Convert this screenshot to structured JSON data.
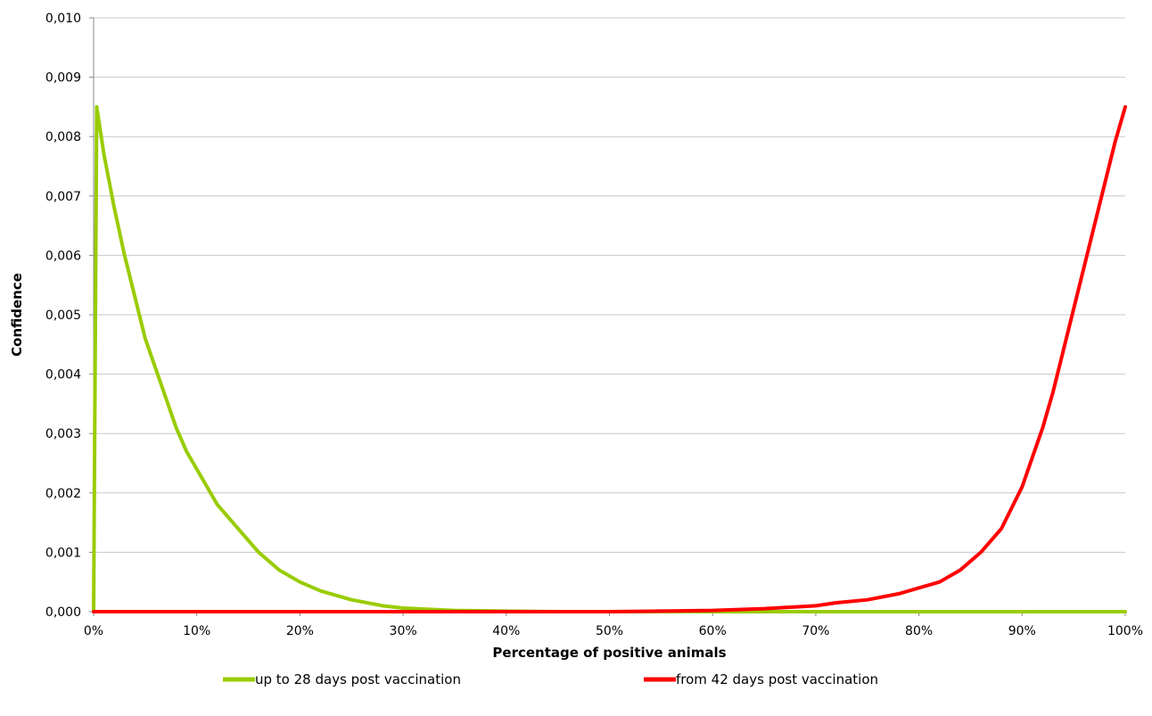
{
  "chart_data": {
    "type": "line",
    "title": "",
    "xlabel": "Percentage of positive animals",
    "ylabel": "Confidence",
    "xlim": [
      0,
      100
    ],
    "ylim": [
      0,
      0.01
    ],
    "x_ticks": [
      "0%",
      "10%",
      "20%",
      "30%",
      "40%",
      "50%",
      "60%",
      "70%",
      "80%",
      "90%",
      "100%"
    ],
    "y_ticks": [
      "0,000",
      "0,001",
      "0,002",
      "0,003",
      "0,004",
      "0,005",
      "0,006",
      "0,007",
      "0,008",
      "0,009",
      "0,010"
    ],
    "grid": "horizontal",
    "legend_position": "bottom",
    "series": [
      {
        "name": "up to 28 days post vaccination",
        "color": "#99cc00",
        "x": [
          0,
          0.3,
          1,
          2,
          3,
          4,
          5,
          6,
          7,
          8,
          9,
          10,
          12,
          14,
          16,
          18,
          20,
          22,
          25,
          28,
          30,
          35,
          40,
          45,
          50,
          60,
          70,
          80,
          90,
          100
        ],
        "y": [
          0,
          0.0085,
          0.0077,
          0.0068,
          0.006,
          0.0053,
          0.0046,
          0.0041,
          0.0036,
          0.0031,
          0.0027,
          0.0024,
          0.0018,
          0.0014,
          0.001,
          0.0007,
          0.0005,
          0.00035,
          0.0002,
          0.0001,
          6e-05,
          2e-05,
          1e-05,
          0,
          0,
          0,
          0,
          0,
          0,
          0
        ]
      },
      {
        "name": "from 42 days post vaccination",
        "color": "#ff0000",
        "x": [
          0,
          10,
          20,
          30,
          40,
          50,
          55,
          60,
          65,
          70,
          72,
          75,
          78,
          80,
          82,
          84,
          86,
          88,
          90,
          91,
          92,
          93,
          94,
          95,
          96,
          97,
          98,
          99,
          100
        ],
        "y": [
          0,
          0,
          0,
          0,
          0,
          0,
          1e-05,
          2e-05,
          5e-05,
          0.0001,
          0.00015,
          0.0002,
          0.0003,
          0.0004,
          0.0005,
          0.0007,
          0.001,
          0.0014,
          0.0021,
          0.0026,
          0.0031,
          0.0037,
          0.0044,
          0.0051,
          0.0058,
          0.0065,
          0.0072,
          0.0079,
          0.0085
        ]
      }
    ]
  }
}
